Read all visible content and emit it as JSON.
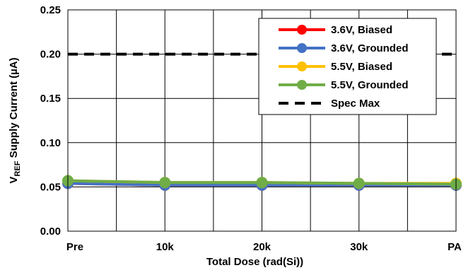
{
  "chart_data": {
    "type": "line",
    "title": "",
    "xlabel": "Total Dose (rad(Si))",
    "ylabel_main": "V",
    "ylabel_sub": "REF",
    "ylabel_rest": " Supply Current (µA)",
    "categories": [
      "Pre",
      "10k",
      "20k",
      "30k",
      "PA"
    ],
    "ylim": [
      0,
      0.25
    ],
    "yticks": [
      "0.00",
      "0.05",
      "0.10",
      "0.15",
      "0.20",
      "0.25"
    ],
    "grid": true,
    "legend_position": "top-right",
    "series": [
      {
        "name": "3.6V, Biased",
        "color": "#ff0000",
        "values": [
          0.054,
          0.052,
          0.052,
          0.052,
          0.052
        ],
        "style": "solid-marker"
      },
      {
        "name": "3.6V, Grounded",
        "color": "#4472c4",
        "values": [
          0.054,
          0.052,
          0.052,
          0.052,
          0.052
        ],
        "style": "solid-marker"
      },
      {
        "name": "5.5V, Biased",
        "color": "#ffc000",
        "values": [
          0.057,
          0.055,
          0.055,
          0.054,
          0.054
        ],
        "style": "solid-marker"
      },
      {
        "name": "5.5V, Grounded",
        "color": "#70ad47",
        "values": [
          0.057,
          0.055,
          0.055,
          0.054,
          0.053
        ],
        "style": "solid-marker"
      },
      {
        "name": "Spec Max",
        "color": "#000000",
        "values": [
          0.2,
          0.2,
          0.2,
          0.2,
          0.2
        ],
        "style": "dashed"
      }
    ]
  }
}
